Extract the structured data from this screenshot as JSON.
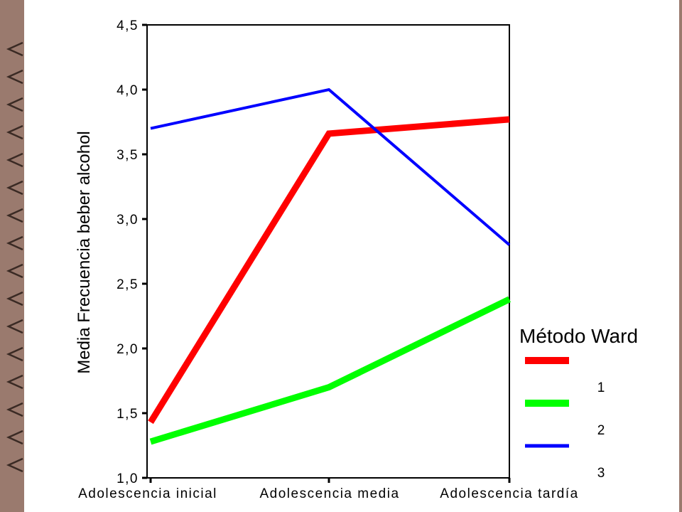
{
  "chart_data": {
    "type": "line",
    "title": "",
    "xlabel": "",
    "ylabel": "Media Frecuencia beber alcohol",
    "ylim": [
      1.0,
      4.5
    ],
    "yticks": [
      "1,0",
      "1,5",
      "2,0",
      "2,5",
      "3,0",
      "3,5",
      "4,0",
      "4,5"
    ],
    "ytick_values": [
      1.0,
      1.5,
      2.0,
      2.5,
      3.0,
      3.5,
      4.0,
      4.5
    ],
    "categories": [
      "Adolescencia inicial",
      "Adolescencia media",
      "Adolescencia tardía"
    ],
    "grid": false,
    "legend_position": "right",
    "legend_title": "Método Ward",
    "series": [
      {
        "name": "1",
        "color": "#ff0000",
        "values": [
          1.43,
          3.66,
          3.77
        ]
      },
      {
        "name": "2",
        "color": "#00ff00",
        "values": [
          1.28,
          1.7,
          2.38
        ]
      },
      {
        "name": "3",
        "color": "#0000ff",
        "values": [
          3.7,
          4.0,
          2.8
        ]
      }
    ]
  }
}
